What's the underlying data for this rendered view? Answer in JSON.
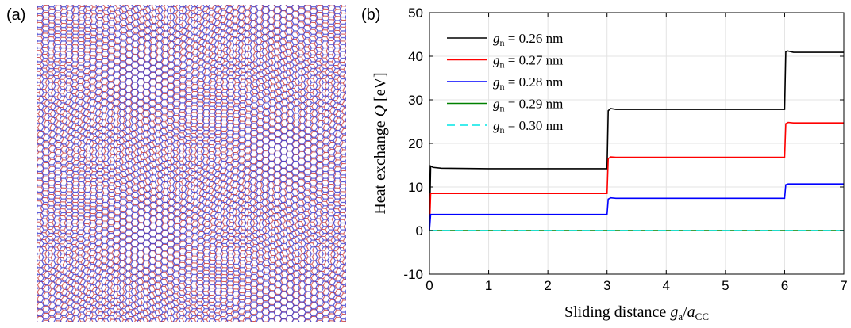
{
  "panel_a": {
    "label": "(a)"
  },
  "panel_b": {
    "label": "(b)"
  },
  "colors": {
    "lattice_blue": "#3b3bd0",
    "lattice_red": "#d05050",
    "series": [
      "#000000",
      "#ff0000",
      "#0000ff",
      "#008000",
      "#00e5e5"
    ]
  },
  "chart_data": {
    "type": "line",
    "xlabel": "Sliding distance g_a/a_CC",
    "xlabel_parts": {
      "prefix": "Sliding distance ",
      "g": "g",
      "a_sub": "a",
      "slash": "/",
      "a": "a",
      "cc_sub": "CC"
    },
    "ylabel": "Heat exchange Q [eV]",
    "ylabel_parts": {
      "prefix": "Heat exchange ",
      "Q": "Q",
      "unit": " [eV]"
    },
    "xlim": [
      0,
      7
    ],
    "ylim": [
      -10,
      50
    ],
    "xticks": [
      "0",
      "1",
      "2",
      "3",
      "4",
      "5",
      "6",
      "7"
    ],
    "yticks": [
      "-10",
      "0",
      "10",
      "20",
      "30",
      "40",
      "50"
    ],
    "grid": true,
    "legend_position": "top-left",
    "series": [
      {
        "name": "g_n = 0.26 nm",
        "name_parts": {
          "g": "g",
          "sub": "n",
          "rest": " = 0.26 nm"
        },
        "style": "solid",
        "x": [
          0,
          0.02,
          0.06,
          0.2,
          1.0,
          2.0,
          3.0,
          3.02,
          3.06,
          3.15,
          4.0,
          5.0,
          6.0,
          6.02,
          6.05,
          6.15,
          7.0
        ],
        "y": [
          0,
          14.8,
          14.5,
          14.3,
          14.2,
          14.2,
          14.2,
          27.5,
          28.0,
          27.8,
          27.8,
          27.8,
          27.8,
          41.0,
          41.2,
          40.9,
          40.9
        ]
      },
      {
        "name": "g_n = 0.27 nm",
        "name_parts": {
          "g": "g",
          "sub": "n",
          "rest": " = 0.27 nm"
        },
        "style": "solid",
        "x": [
          0,
          0.02,
          0.2,
          1.0,
          2.0,
          3.0,
          3.02,
          3.06,
          3.15,
          4.0,
          5.0,
          6.0,
          6.02,
          6.06,
          6.15,
          7.0
        ],
        "y": [
          0,
          8.5,
          8.5,
          8.5,
          8.5,
          8.5,
          16.5,
          16.9,
          16.8,
          16.8,
          16.8,
          16.8,
          24.5,
          24.8,
          24.7,
          24.7
        ]
      },
      {
        "name": "g_n = 0.28 nm",
        "name_parts": {
          "g": "g",
          "sub": "n",
          "rest": " = 0.28 nm"
        },
        "style": "solid",
        "x": [
          0,
          0.02,
          0.2,
          1.0,
          2.0,
          3.0,
          3.02,
          3.06,
          3.15,
          4.0,
          5.0,
          6.0,
          6.02,
          6.06,
          6.15,
          7.0
        ],
        "y": [
          0,
          3.7,
          3.7,
          3.7,
          3.7,
          3.7,
          7.2,
          7.5,
          7.4,
          7.4,
          7.4,
          7.4,
          10.5,
          10.7,
          10.7,
          10.7
        ]
      },
      {
        "name": "g_n = 0.29 nm",
        "name_parts": {
          "g": "g",
          "sub": "n",
          "rest": " = 0.29 nm"
        },
        "style": "solid",
        "x": [
          0,
          7
        ],
        "y": [
          0,
          0
        ]
      },
      {
        "name": "g_n = 0.30 nm",
        "name_parts": {
          "g": "g",
          "sub": "n",
          "rest": " = 0.30 nm"
        },
        "style": "dashed",
        "x": [
          0,
          7
        ],
        "y": [
          0,
          0
        ]
      }
    ]
  }
}
